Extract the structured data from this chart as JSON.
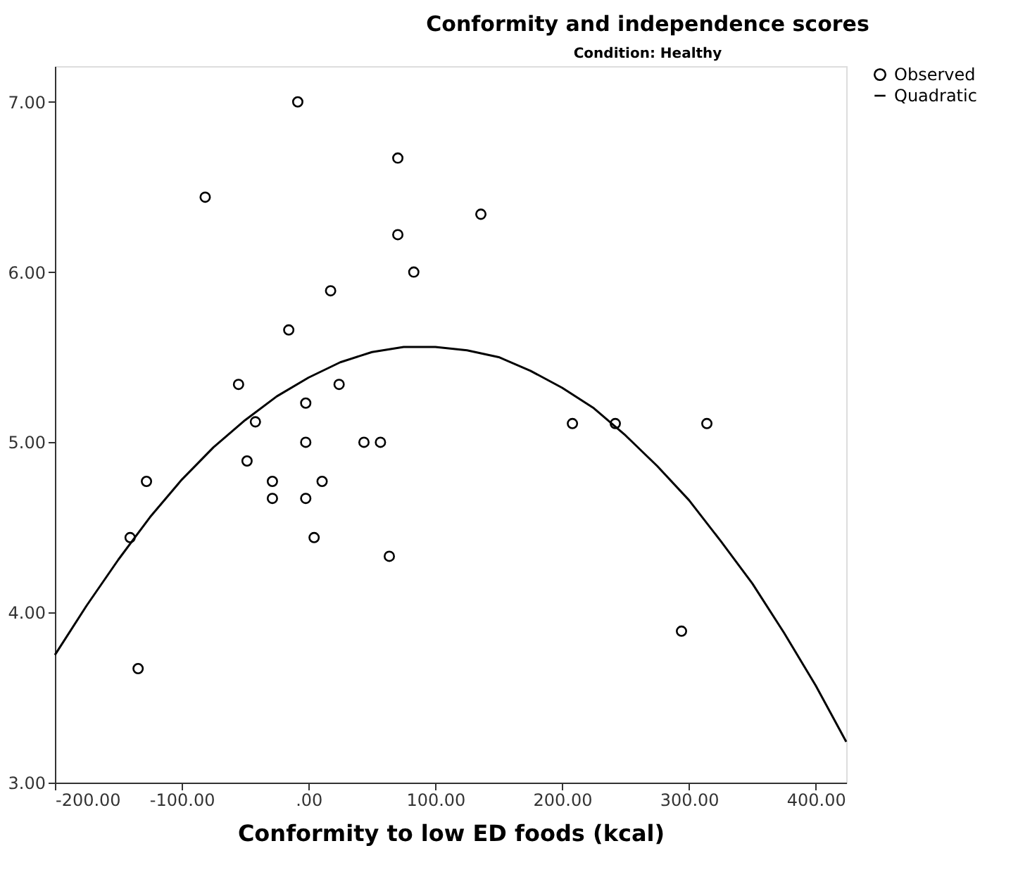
{
  "chart_data": {
    "type": "scatter",
    "title": "Conformity and independence scores",
    "subtitle": "Condition: Healthy",
    "xlabel": "Conformity to low ED foods (kcal)",
    "xlim": [
      -200,
      424
    ],
    "ylim": [
      3,
      7.21
    ],
    "xticks": [
      {
        "value": -200,
        "label": "-200.00"
      },
      {
        "value": -100,
        "label": "-100.00"
      },
      {
        "value": 0,
        "label": ".00"
      },
      {
        "value": 100,
        "label": "100.00"
      },
      {
        "value": 200,
        "label": "200.00"
      },
      {
        "value": 300,
        "label": "300.00"
      },
      {
        "value": 400,
        "label": "400.00"
      }
    ],
    "yticks": [
      {
        "value": 3,
        "label": "3.00"
      },
      {
        "value": 4,
        "label": "4.00"
      },
      {
        "value": 5,
        "label": "5.00"
      },
      {
        "value": 6,
        "label": "6.00"
      },
      {
        "value": 7,
        "label": "7.00"
      }
    ],
    "grid": false,
    "legend": "top right",
    "series": [
      {
        "name": "Observed",
        "marker": "circle",
        "color": "#000000",
        "x": [
          -8.5,
          70.4,
          -81.5,
          135.9,
          70.4,
          83,
          17.4,
          -15.6,
          -55.2,
          24.1,
          -2.2,
          -41.9,
          -2.2,
          43.7,
          56.7,
          -48.5,
          -127.8,
          -28.5,
          10.7,
          -28.5,
          -2.2,
          -140.7,
          4.4,
          63.7,
          -134.4,
          208.1,
          241.9,
          314.1,
          294.1
        ],
        "values": [
          7.0,
          6.67,
          6.44,
          6.34,
          6.22,
          6.0,
          5.89,
          5.66,
          5.34,
          5.34,
          5.23,
          5.12,
          5.0,
          5.0,
          5.0,
          4.89,
          4.77,
          4.77,
          4.77,
          4.67,
          4.67,
          4.44,
          4.44,
          4.33,
          3.67,
          5.11,
          5.11,
          5.11,
          3.89
        ]
      },
      {
        "name": "Quadratic",
        "type": "line",
        "marker": "none",
        "color": "#000000",
        "line_style": "solid",
        "x": [
          -200,
          -175,
          -150,
          -125,
          -100,
          -75,
          -50,
          -25,
          0,
          25,
          50,
          75,
          100,
          125,
          150,
          175,
          200,
          225,
          250,
          275,
          300,
          325,
          350,
          375,
          400,
          424
        ],
        "values": [
          3.75,
          4.04,
          4.31,
          4.56,
          4.78,
          4.97,
          5.13,
          5.27,
          5.38,
          5.47,
          5.53,
          5.56,
          5.56,
          5.54,
          5.5,
          5.42,
          5.32,
          5.2,
          5.04,
          4.86,
          4.66,
          4.42,
          4.17,
          3.88,
          3.57,
          3.24
        ]
      }
    ]
  }
}
